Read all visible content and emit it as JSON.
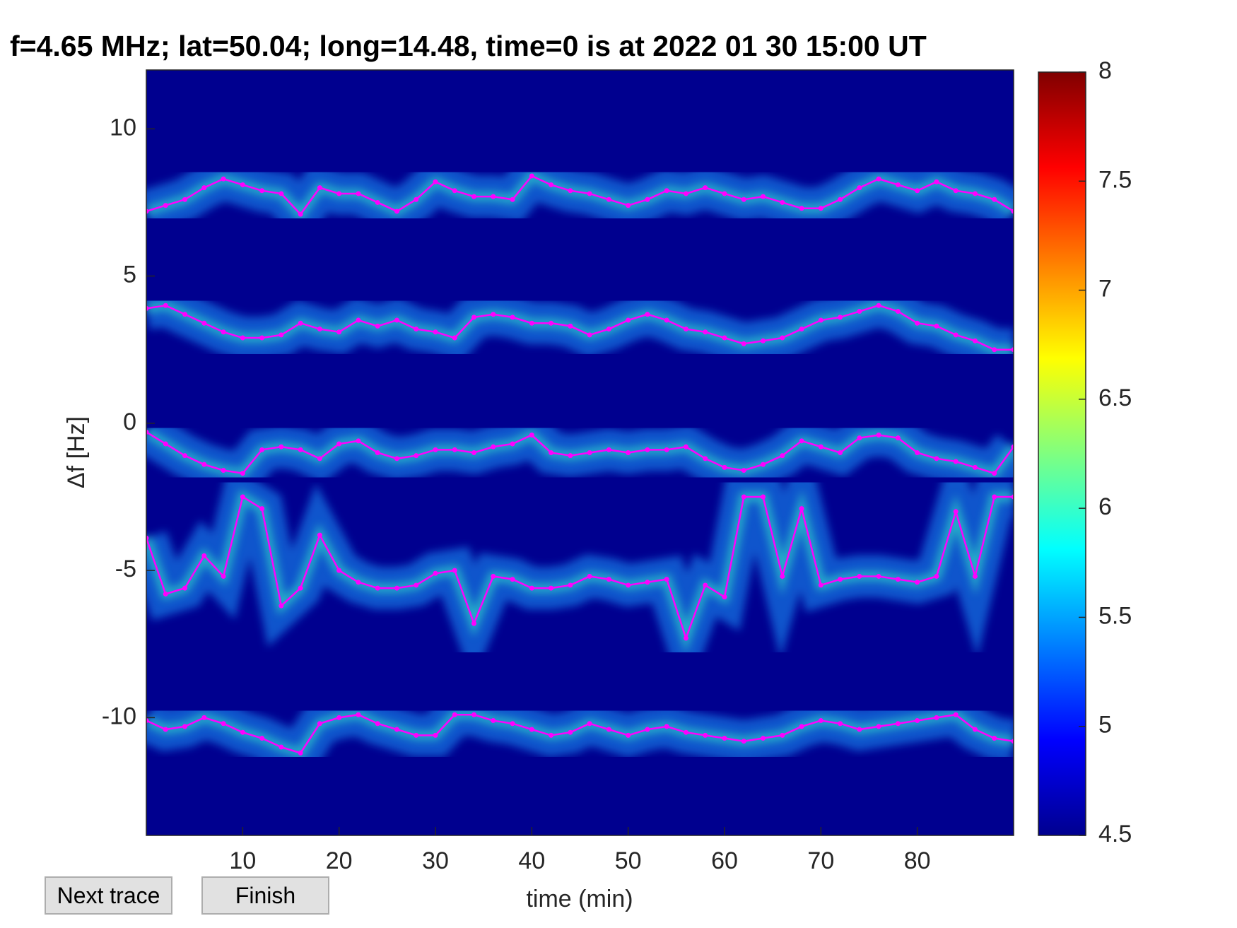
{
  "chart_data": {
    "type": "line",
    "title": "f=4.65 MHz;  lat=50.04; long=14.48, time=0 is at 2022 01 30 15:00 UT",
    "xlabel": "time (min)",
    "ylabel": "Δf [Hz]",
    "x": [
      0,
      2,
      4,
      6,
      8,
      10,
      12,
      14,
      16,
      18,
      20,
      22,
      24,
      26,
      28,
      30,
      32,
      34,
      36,
      38,
      40,
      42,
      44,
      46,
      48,
      50,
      52,
      54,
      56,
      58,
      60,
      62,
      64,
      66,
      68,
      70,
      72,
      74,
      76,
      78,
      80,
      82,
      84,
      86,
      88,
      90
    ],
    "xlim": [
      0,
      90
    ],
    "xticks": [
      10,
      20,
      30,
      40,
      50,
      60,
      70,
      80
    ],
    "ylim": [
      -14,
      12
    ],
    "yticks": [
      -10,
      -5,
      0,
      5,
      10
    ],
    "colormap": "jet",
    "clim": [
      4.5,
      8
    ],
    "cticks": [
      4.5,
      5,
      5.5,
      6,
      6.5,
      7,
      7.5,
      8
    ],
    "markers": true,
    "series": [
      {
        "color": "#ff00ff",
        "values": [
          7.2,
          7.4,
          7.6,
          8.0,
          8.3,
          8.1,
          7.9,
          7.8,
          7.1,
          8.0,
          7.8,
          7.8,
          7.5,
          7.2,
          7.6,
          8.2,
          7.9,
          7.7,
          7.7,
          7.6,
          8.4,
          8.1,
          7.9,
          7.8,
          7.6,
          7.4,
          7.6,
          7.9,
          7.8,
          8.0,
          7.8,
          7.6,
          7.7,
          7.5,
          7.3,
          7.3,
          7.6,
          8.0,
          8.3,
          8.1,
          7.9,
          8.2,
          7.9,
          7.8,
          7.6,
          7.2
        ]
      },
      {
        "color": "#ff00ff",
        "values": [
          3.9,
          4.0,
          3.7,
          3.4,
          3.1,
          2.9,
          2.9,
          3.0,
          3.4,
          3.2,
          3.1,
          3.5,
          3.3,
          3.5,
          3.2,
          3.1,
          2.9,
          3.6,
          3.7,
          3.6,
          3.4,
          3.4,
          3.3,
          3.0,
          3.2,
          3.5,
          3.7,
          3.5,
          3.2,
          3.1,
          2.9,
          2.7,
          2.8,
          2.9,
          3.2,
          3.5,
          3.6,
          3.8,
          4.0,
          3.8,
          3.4,
          3.3,
          3.0,
          2.8,
          2.5,
          2.5
        ]
      },
      {
        "color": "#ff00ff",
        "values": [
          -0.3,
          -0.7,
          -1.1,
          -1.4,
          -1.6,
          -1.7,
          -0.9,
          -0.8,
          -0.9,
          -1.2,
          -0.7,
          -0.6,
          -1.0,
          -1.2,
          -1.1,
          -0.9,
          -0.9,
          -1.0,
          -0.8,
          -0.7,
          -0.4,
          -1.0,
          -1.1,
          -1.0,
          -0.9,
          -1.0,
          -0.9,
          -0.9,
          -0.8,
          -1.2,
          -1.5,
          -1.6,
          -1.4,
          -1.1,
          -0.6,
          -0.8,
          -1.0,
          -0.5,
          -0.4,
          -0.5,
          -1.0,
          -1.2,
          -1.3,
          -1.5,
          -1.7,
          -0.8
        ]
      },
      {
        "color": "#ff00ff",
        "values": [
          -3.9,
          -5.8,
          -5.6,
          -4.5,
          -5.2,
          -2.5,
          -2.9,
          -6.2,
          -5.6,
          -3.8,
          -5.0,
          -5.4,
          -5.6,
          -5.6,
          -5.5,
          -5.1,
          -5.0,
          -6.8,
          -5.2,
          -5.3,
          -5.6,
          -5.6,
          -5.5,
          -5.2,
          -5.3,
          -5.5,
          -5.4,
          -5.3,
          -7.3,
          -5.5,
          -5.9,
          -2.5,
          -2.5,
          -5.2,
          -2.9,
          -5.5,
          -5.3,
          -5.2,
          -5.2,
          -5.3,
          -5.4,
          -5.2,
          -3.0,
          -5.2,
          -2.5,
          -2.5
        ]
      },
      {
        "color": "#ff00ff",
        "values": [
          -10.1,
          -10.4,
          -10.3,
          -10.0,
          -10.2,
          -10.5,
          -10.7,
          -11.0,
          -11.2,
          -10.2,
          -10.0,
          -9.9,
          -10.2,
          -10.4,
          -10.6,
          -10.6,
          -9.9,
          -9.9,
          -10.1,
          -10.2,
          -10.4,
          -10.6,
          -10.5,
          -10.2,
          -10.4,
          -10.6,
          -10.4,
          -10.3,
          -10.5,
          -10.6,
          -10.7,
          -10.8,
          -10.7,
          -10.6,
          -10.3,
          -10.1,
          -10.2,
          -10.4,
          -10.3,
          -10.2,
          -10.1,
          -10.0,
          -9.9,
          -10.4,
          -10.7,
          -10.8
        ]
      }
    ]
  },
  "buttons": [
    "Next trace",
    "Finish"
  ]
}
